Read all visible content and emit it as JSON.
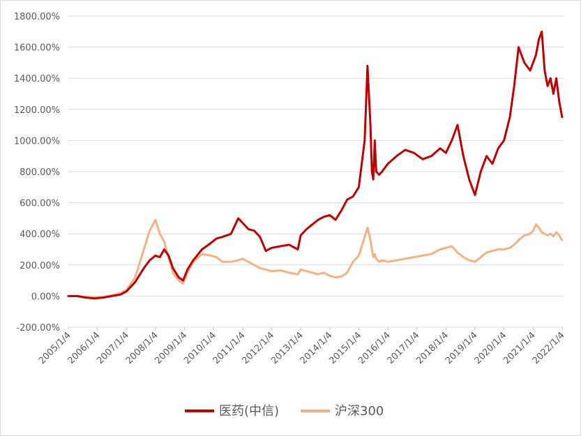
{
  "chart_data": {
    "type": "line",
    "y_ticks": [
      "-200.00%",
      "0.00%",
      "200.00%",
      "400.00%",
      "600.00%",
      "800.00%",
      "1000.00%",
      "1200.00%",
      "1400.00%",
      "1600.00%",
      "1800.00%"
    ],
    "x_ticks": [
      "2005/1/4",
      "2006/1/4",
      "2007/1/4",
      "2008/1/4",
      "2009/1/4",
      "2010/1/4",
      "2011/1/4",
      "2012/1/4",
      "2013/1/4",
      "2014/1/4",
      "2015/1/4",
      "2016/1/4",
      "2017/1/4",
      "2018/1/4",
      "2019/1/4",
      "2020/1/4",
      "2021/1/4",
      "2022/1/4"
    ],
    "ylim": [
      -200,
      1800
    ],
    "xlim": [
      2005.0,
      2022.05
    ],
    "grid": "horizontal",
    "legend_position": "bottom",
    "series": [
      {
        "name": "医药(中信)",
        "color": "#c00000",
        "x": [
          2005.0,
          2005.3,
          2005.6,
          2005.9,
          2006.2,
          2006.5,
          2006.8,
          2007.0,
          2007.3,
          2007.6,
          2007.8,
          2008.0,
          2008.15,
          2008.3,
          2008.45,
          2008.6,
          2008.8,
          2008.95,
          2009.1,
          2009.3,
          2009.6,
          2009.9,
          2010.1,
          2010.3,
          2010.6,
          2010.85,
          2011.0,
          2011.2,
          2011.4,
          2011.6,
          2011.8,
          2012.0,
          2012.3,
          2012.6,
          2012.9,
          2013.0,
          2013.2,
          2013.4,
          2013.6,
          2013.8,
          2014.0,
          2014.2,
          2014.4,
          2014.6,
          2014.8,
          2015.0,
          2015.2,
          2015.3,
          2015.4,
          2015.45,
          2015.5,
          2015.55,
          2015.6,
          2015.7,
          2015.8,
          2016.0,
          2016.3,
          2016.6,
          2016.9,
          2017.2,
          2017.5,
          2017.8,
          2018.0,
          2018.2,
          2018.4,
          2018.6,
          2018.8,
          2019.0,
          2019.2,
          2019.4,
          2019.6,
          2019.8,
          2020.0,
          2020.2,
          2020.35,
          2020.5,
          2020.7,
          2020.9,
          2021.0,
          2021.1,
          2021.2,
          2021.3,
          2021.4,
          2021.5,
          2021.6,
          2021.7,
          2021.8,
          2021.9,
          2022.0
        ],
        "values": [
          0,
          0,
          -10,
          -15,
          -10,
          0,
          10,
          30,
          90,
          180,
          230,
          260,
          250,
          300,
          260,
          180,
          120,
          100,
          170,
          230,
          300,
          340,
          370,
          380,
          400,
          500,
          470,
          430,
          420,
          380,
          290,
          310,
          320,
          330,
          300,
          390,
          430,
          460,
          490,
          510,
          520,
          490,
          550,
          620,
          640,
          700,
          1000,
          1480,
          1100,
          800,
          750,
          1000,
          800,
          780,
          800,
          850,
          900,
          940,
          920,
          880,
          900,
          950,
          920,
          1000,
          1100,
          900,
          750,
          650,
          800,
          900,
          850,
          950,
          1000,
          1150,
          1350,
          1600,
          1500,
          1450,
          1500,
          1550,
          1650,
          1700,
          1450,
          1350,
          1400,
          1300,
          1400,
          1250,
          1150
        ]
      },
      {
        "name": "沪深300",
        "color": "#f4b183",
        "x": [
          2005.0,
          2005.3,
          2005.6,
          2005.9,
          2006.2,
          2006.5,
          2006.8,
          2007.0,
          2007.3,
          2007.6,
          2007.8,
          2008.0,
          2008.15,
          2008.3,
          2008.45,
          2008.6,
          2008.8,
          2008.95,
          2009.1,
          2009.3,
          2009.6,
          2009.9,
          2010.1,
          2010.3,
          2010.6,
          2010.85,
          2011.0,
          2011.2,
          2011.4,
          2011.6,
          2011.8,
          2012.0,
          2012.3,
          2012.6,
          2012.9,
          2013.0,
          2013.2,
          2013.4,
          2013.6,
          2013.8,
          2014.0,
          2014.2,
          2014.4,
          2014.6,
          2014.8,
          2015.0,
          2015.2,
          2015.3,
          2015.4,
          2015.45,
          2015.5,
          2015.55,
          2015.6,
          2015.7,
          2015.8,
          2016.0,
          2016.3,
          2016.6,
          2016.9,
          2017.2,
          2017.5,
          2017.8,
          2018.0,
          2018.2,
          2018.4,
          2018.6,
          2018.8,
          2019.0,
          2019.2,
          2019.4,
          2019.6,
          2019.8,
          2020.0,
          2020.2,
          2020.35,
          2020.5,
          2020.7,
          2020.9,
          2021.0,
          2021.1,
          2021.2,
          2021.3,
          2021.4,
          2021.5,
          2021.6,
          2021.7,
          2021.8,
          2021.9,
          2022.0
        ],
        "values": [
          0,
          0,
          -5,
          -10,
          -5,
          5,
          20,
          40,
          120,
          300,
          420,
          490,
          400,
          350,
          250,
          150,
          100,
          80,
          150,
          220,
          270,
          260,
          250,
          220,
          220,
          230,
          240,
          220,
          200,
          180,
          170,
          160,
          165,
          150,
          140,
          170,
          160,
          150,
          140,
          150,
          130,
          120,
          125,
          150,
          220,
          260,
          380,
          440,
          360,
          300,
          250,
          270,
          240,
          220,
          230,
          220,
          230,
          240,
          250,
          260,
          270,
          300,
          310,
          320,
          280,
          250,
          230,
          220,
          250,
          280,
          290,
          300,
          300,
          310,
          330,
          360,
          390,
          400,
          420,
          460,
          440,
          410,
          400,
          390,
          400,
          385,
          410,
          390,
          360
        ]
      }
    ]
  }
}
